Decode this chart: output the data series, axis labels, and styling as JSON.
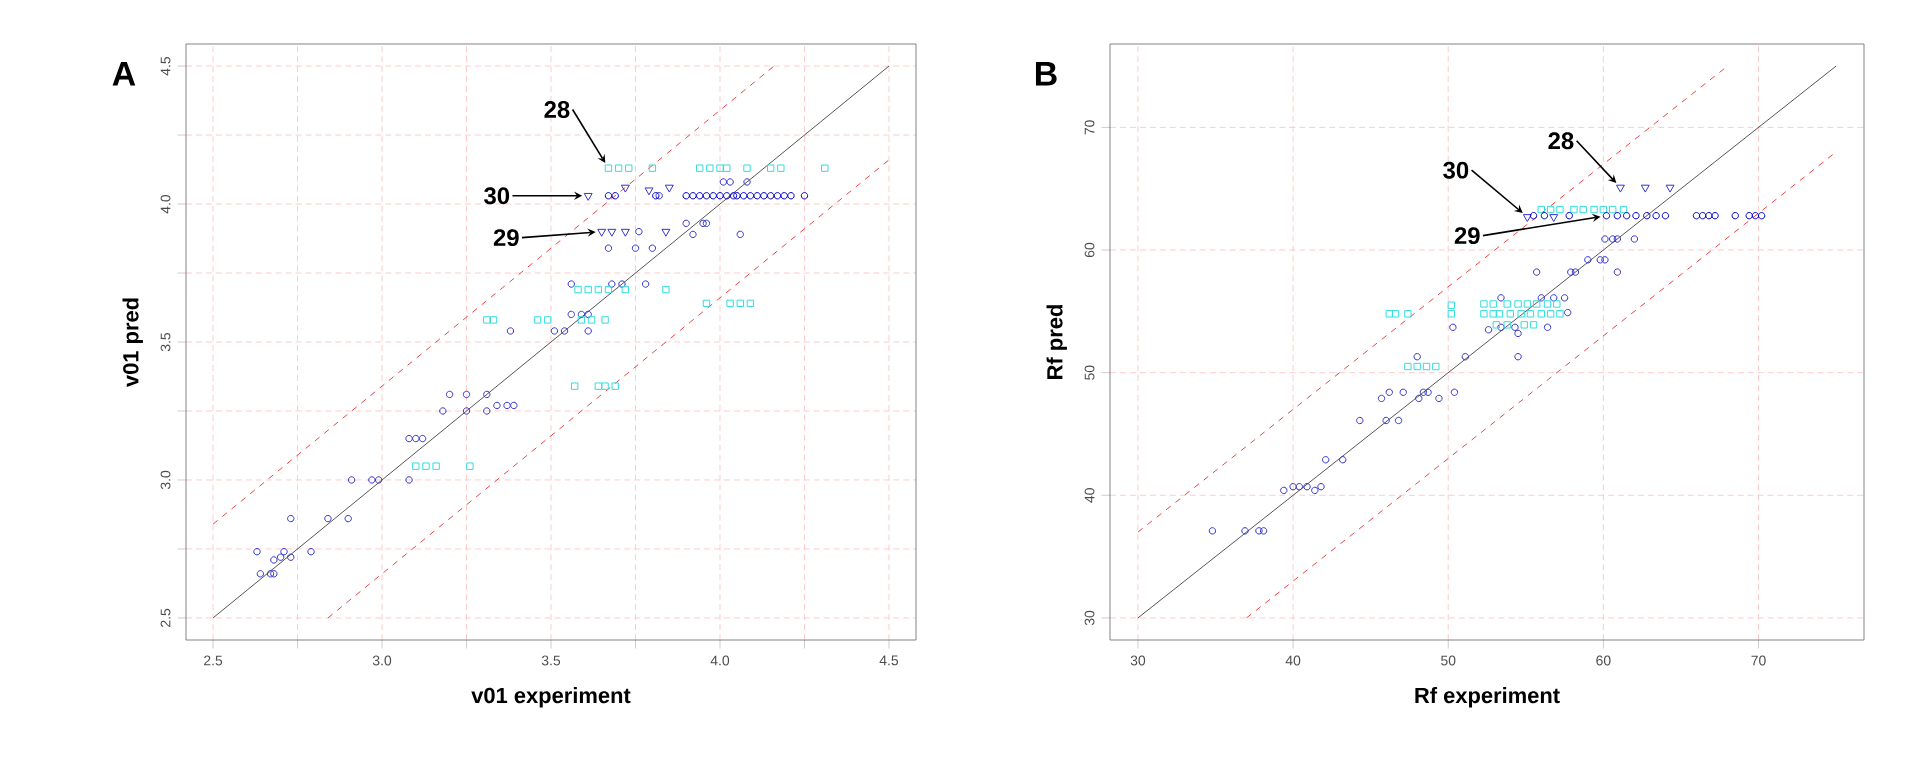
{
  "chart_data": [
    {
      "type": "scatter",
      "title": "A",
      "xlabel": "v01 experiment",
      "ylabel": "v01 pred",
      "xlim": [
        2.42,
        4.58
      ],
      "ylim": [
        2.42,
        4.58
      ],
      "grid": true,
      "xticks": [
        2.5,
        {
          "value": 2.75,
          "label": null
        },
        {
          "value": 3.0,
          "label": "3.0"
        },
        {
          "value": 3.25,
          "label": null
        },
        3.5,
        {
          "value": 3.75,
          "label": null
        },
        {
          "value": 4.0,
          "label": "4.0"
        },
        {
          "value": 4.25,
          "label": null
        },
        4.5
      ],
      "yticks": [
        2.5,
        {
          "value": 2.75,
          "label": null
        },
        {
          "value": 3.0,
          "label": "3.0"
        },
        {
          "value": 3.25,
          "label": null
        },
        3.5,
        {
          "value": 3.75,
          "label": null
        },
        {
          "value": 4.0,
          "label": "4.0"
        },
        {
          "value": 4.25,
          "label": null
        },
        4.5
      ],
      "annotations": [
        {
          "text": "28",
          "x": 3.67,
          "y": 4.13
        },
        {
          "text": "30",
          "x": 3.61,
          "y": 4.03
        },
        {
          "text": "29",
          "x": 3.65,
          "y": 3.9
        }
      ],
      "series": [
        {
          "type": "line",
          "color": "#555555",
          "line_style": "solid",
          "marker": "none",
          "x": [
            2.5,
            4.5
          ],
          "values": [
            2.5,
            4.5
          ]
        },
        {
          "type": "line",
          "color": "#ee4444",
          "line_style": "dashed",
          "marker": "none",
          "x": [
            2.5,
            4.16
          ],
          "values": [
            2.84,
            4.5
          ]
        },
        {
          "type": "line",
          "color": "#ee4444",
          "line_style": "dashed",
          "marker": "none",
          "x": [
            2.84,
            4.5
          ],
          "values": [
            2.5,
            4.16
          ]
        },
        {
          "color": "#3333cc",
          "marker": "circle",
          "x": [
            2.63,
            2.64,
            2.67,
            2.68,
            2.68,
            2.7,
            2.71,
            2.73,
            2.79,
            2.73,
            2.84,
            2.9,
            2.91,
            2.97,
            2.99,
            3.08,
            3.08,
            3.1,
            3.12,
            3.18,
            3.2,
            3.25,
            3.25,
            3.31,
            3.31,
            3.34,
            3.37,
            3.39,
            3.38,
            3.51,
            3.54,
            3.56,
            3.59,
            3.61,
            3.61,
            3.56,
            3.68,
            3.71,
            3.78,
            3.67,
            3.75,
            3.8,
            3.76,
            3.9,
            3.92,
            3.95,
            3.96,
            4.06,
            4.01,
            4.03,
            4.08,
            3.82
          ],
          "values": [
            2.74,
            2.66,
            2.66,
            2.66,
            2.71,
            2.72,
            2.74,
            2.72,
            2.74,
            2.86,
            2.86,
            2.86,
            3.0,
            3.0,
            3.0,
            3.0,
            3.15,
            3.15,
            3.15,
            3.25,
            3.31,
            3.31,
            3.25,
            3.31,
            3.25,
            3.27,
            3.27,
            3.27,
            3.54,
            3.54,
            3.54,
            3.6,
            3.6,
            3.6,
            3.54,
            3.71,
            3.71,
            3.71,
            3.71,
            3.84,
            3.84,
            3.84,
            3.9,
            3.93,
            3.89,
            3.93,
            3.93,
            3.89,
            4.08,
            4.08,
            4.08,
            4.03
          ]
        },
        {
          "color": "#3333cc",
          "marker": "triangle",
          "x": [
            3.61,
            3.72,
            3.79,
            3.85,
            3.65,
            3.68,
            3.72,
            3.84
          ],
          "values": [
            4.03,
            4.06,
            4.05,
            4.06,
            3.9,
            3.9,
            3.9,
            3.9
          ]
        },
        {
          "color": "#33dddd",
          "marker": "square",
          "x": [
            3.67,
            3.7,
            3.73,
            3.8,
            3.94,
            3.97,
            4.0,
            4.02,
            4.08,
            4.15,
            4.18,
            4.31,
            3.58,
            3.61,
            3.64,
            3.67,
            3.72,
            3.84,
            3.96,
            4.03,
            4.06,
            4.09,
            3.31,
            3.33,
            3.46,
            3.49,
            3.59,
            3.62,
            3.66,
            3.57,
            3.64,
            3.66,
            3.69,
            3.1,
            3.13,
            3.16,
            3.26
          ],
          "values": [
            4.13,
            4.13,
            4.13,
            4.13,
            4.13,
            4.13,
            4.13,
            4.13,
            4.13,
            4.13,
            4.13,
            4.13,
            3.69,
            3.69,
            3.69,
            3.69,
            3.69,
            3.69,
            3.64,
            3.64,
            3.64,
            3.64,
            3.58,
            3.58,
            3.58,
            3.58,
            3.58,
            3.58,
            3.58,
            3.34,
            3.34,
            3.34,
            3.34,
            3.05,
            3.05,
            3.05,
            3.05
          ]
        },
        {
          "color": "#0000cc",
          "marker": "circle",
          "x": [
            3.67,
            3.69,
            3.81,
            3.9,
            3.92,
            3.94,
            3.96,
            3.98,
            4.0,
            4.02,
            4.04,
            4.05,
            4.07,
            4.09,
            4.11,
            4.13,
            4.15,
            4.17,
            4.19,
            4.21,
            4.25
          ],
          "values": [
            4.03,
            4.03,
            4.03,
            4.03,
            4.03,
            4.03,
            4.03,
            4.03,
            4.03,
            4.03,
            4.03,
            4.03,
            4.03,
            4.03,
            4.03,
            4.03,
            4.03,
            4.03,
            4.03,
            4.03,
            4.03
          ]
        }
      ]
    },
    {
      "type": "scatter",
      "title": "B",
      "xlabel": "Rf experiment",
      "ylabel": "Rf pred",
      "xlim": [
        28.2,
        76.8
      ],
      "ylim": [
        28.2,
        76.8
      ],
      "grid": true,
      "xticks": [
        30,
        40,
        50,
        60,
        70
      ],
      "yticks": [
        30,
        40,
        50,
        60,
        70
      ],
      "annotations": [
        {
          "text": "28",
          "x": 61.1,
          "y": 65.1
        },
        {
          "text": "30",
          "x": 55.1,
          "y": 62.7
        },
        {
          "text": "29",
          "x": 60.2,
          "y": 62.8
        }
      ],
      "series": [
        {
          "type": "line",
          "color": "#555555",
          "line_style": "solid",
          "marker": "none",
          "x": [
            30,
            75
          ],
          "values": [
            30,
            75
          ]
        },
        {
          "type": "line",
          "color": "#ee4444",
          "line_style": "dashed",
          "marker": "none",
          "x": [
            30,
            68
          ],
          "values": [
            37,
            75
          ]
        },
        {
          "type": "line",
          "color": "#ee4444",
          "line_style": "dashed",
          "marker": "none",
          "x": [
            37,
            75
          ],
          "values": [
            30,
            68
          ]
        },
        {
          "color": "#3333cc",
          "marker": "circle",
          "x": [
            34.8,
            36.9,
            37.8,
            38.1,
            39.4,
            40.0,
            40.4,
            40.9,
            41.4,
            41.8,
            42.1,
            43.2,
            44.3,
            46.0,
            46.8,
            45.7,
            46.2,
            47.1,
            48.1,
            48.4,
            48.7,
            49.4,
            50.4,
            48.0,
            51.1,
            54.5,
            50.3,
            52.6,
            53.4,
            54.3,
            56.4,
            54.5,
            53.4,
            56.0,
            56.8,
            57.5,
            57.7,
            55.7,
            57.9,
            58.2,
            59.0,
            59.8,
            60.1,
            60.9,
            60.1,
            60.6,
            60.9,
            62.0
          ],
          "values": [
            37.1,
            37.1,
            37.1,
            37.1,
            40.4,
            40.7,
            40.7,
            40.7,
            40.4,
            40.7,
            42.9,
            42.9,
            46.1,
            46.1,
            46.1,
            47.9,
            48.4,
            48.4,
            47.9,
            48.4,
            48.4,
            47.9,
            48.4,
            51.3,
            51.3,
            51.3,
            53.7,
            53.5,
            53.7,
            53.7,
            53.7,
            53.2,
            56.1,
            56.1,
            56.1,
            56.1,
            54.9,
            58.2,
            58.2,
            58.2,
            59.2,
            59.2,
            59.2,
            58.2,
            60.9,
            60.9,
            60.9,
            60.9
          ]
        },
        {
          "color": "#33dddd",
          "marker": "square",
          "x": [
            46.2,
            46.6,
            47.4,
            50.2,
            52.3,
            52.9,
            53.3,
            54.0,
            54.7,
            55.3,
            56.0,
            56.6,
            57.2,
            52.3,
            52.9,
            53.8,
            54.5,
            55.1,
            55.7,
            56.4,
            57.0,
            53.1,
            53.8,
            54.9,
            55.5,
            47.4,
            48.0,
            48.6,
            49.2,
            50.2,
            56.0,
            56.6,
            57.2,
            58.1,
            58.7,
            59.4,
            60.0,
            60.6,
            61.3
          ],
          "values": [
            54.8,
            54.8,
            54.8,
            54.8,
            54.8,
            54.8,
            54.8,
            54.8,
            54.8,
            54.8,
            54.8,
            54.8,
            54.8,
            55.6,
            55.6,
            55.6,
            55.6,
            55.6,
            55.6,
            55.6,
            55.6,
            53.9,
            53.9,
            53.9,
            53.9,
            50.5,
            50.5,
            50.5,
            50.5,
            55.5,
            63.3,
            63.3,
            63.3,
            63.3,
            63.3,
            63.3,
            63.3,
            63.3,
            63.3
          ]
        },
        {
          "color": "#3333cc",
          "marker": "triangle",
          "x": [
            55.1,
            56.8,
            61.1,
            62.7,
            64.3
          ],
          "values": [
            62.7,
            62.7,
            65.1,
            65.1,
            65.1
          ]
        },
        {
          "color": "#0000cc",
          "marker": "circle",
          "x": [
            55.5,
            56.2,
            57.8,
            60.2,
            60.9,
            61.5,
            62.1,
            62.8,
            63.4,
            64.0,
            66.0,
            66.4,
            66.8,
            67.2,
            68.5,
            69.4,
            69.8,
            70.2
          ],
          "values": [
            62.8,
            62.8,
            62.8,
            62.8,
            62.8,
            62.8,
            62.8,
            62.8,
            62.8,
            62.8,
            62.8,
            62.8,
            62.8,
            62.8,
            62.8,
            62.8,
            62.8,
            62.8
          ]
        }
      ]
    }
  ]
}
